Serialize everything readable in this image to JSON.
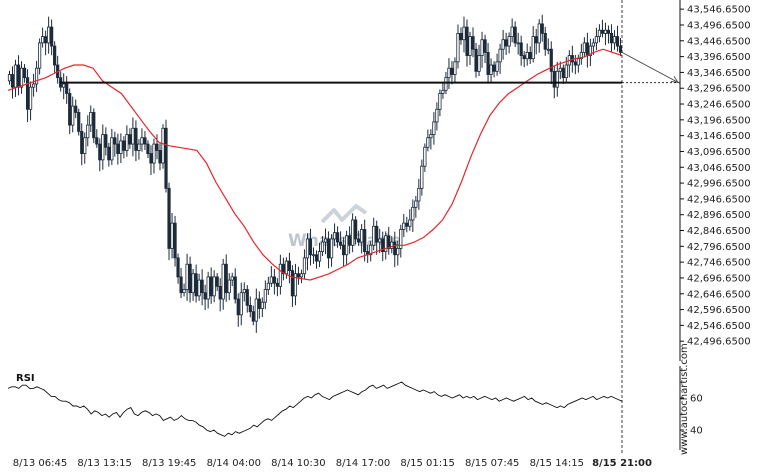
{
  "chart_data": [
    {
      "type": "candlestick",
      "title": "",
      "xlabel": "",
      "ylabel": "",
      "ylim": [
        42446.65,
        43556.65
      ],
      "grid": false,
      "y_tick_labels": [
        "43,546.6500",
        "43,496.6500",
        "43,446.6500",
        "43,396.6500",
        "43,346.6500",
        "43,296.6500",
        "43,246.6500",
        "43,196.6500",
        "43,146.6500",
        "43,096.6500",
        "43,046.6500",
        "42,996.6500",
        "42,946.6500",
        "42,896.6500",
        "42,846.6500",
        "42,796.6500",
        "42,746.6500",
        "42,696.6500",
        "42,646.6500",
        "42,596.6500",
        "42,546.6500",
        "42,496.6500"
      ],
      "y_tick_values": [
        43546.65,
        43496.65,
        43446.65,
        43396.65,
        43346.65,
        43296.65,
        43246.65,
        43196.65,
        43146.65,
        43096.65,
        43046.65,
        42996.65,
        42946.65,
        42896.65,
        42846.65,
        42796.65,
        42746.65,
        42696.65,
        42646.65,
        42596.65,
        42546.65,
        42496.65
      ],
      "x_tick_labels": [
        "8/13 06:45",
        "8/13 13:15",
        "8/13 19:45",
        "8/14 04:00",
        "8/14 10:30",
        "8/14 17:00",
        "8/15 01:15",
        "8/15 07:45",
        "8/15 14:15",
        "8/15 21:00"
      ],
      "close_path": [
        43340,
        43300,
        43370,
        43300,
        43360,
        43330,
        43230,
        43300,
        43310,
        43360,
        43440,
        43460,
        43440,
        43490,
        43430,
        43370,
        43330,
        43300,
        43310,
        43280,
        43180,
        43240,
        43220,
        43160,
        43090,
        43140,
        43180,
        43220,
        43140,
        43120,
        43070,
        43150,
        43110,
        43070,
        43140,
        43120,
        43090,
        43130,
        43100,
        43150,
        43120,
        43170,
        43100,
        43120,
        43140,
        43120,
        43090,
        43060,
        43120,
        43100,
        43060,
        43170,
        42980,
        42790,
        42870,
        42760,
        42700,
        42650,
        42660,
        42740,
        42650,
        42710,
        42640,
        42690,
        42650,
        42630,
        42700,
        42640,
        42700,
        42670,
        42630,
        42740,
        42650,
        42690,
        42700,
        42630,
        42580,
        42650,
        42660,
        42610,
        42590,
        42560,
        42630,
        42600,
        42620,
        42660,
        42680,
        42700,
        42680,
        42670,
        42740,
        42710,
        42750,
        42720,
        42640,
        42710,
        42700,
        42710,
        42760,
        42820,
        42770,
        42770,
        42750,
        42780,
        42810,
        42820,
        42760,
        42820,
        42840,
        42810,
        42800,
        42770,
        42830,
        42800,
        42880,
        42820,
        42810,
        42850,
        42780,
        42770,
        42800,
        42860,
        42810,
        42820,
        42780,
        42830,
        42790,
        42810,
        42770,
        42790,
        42850,
        42870,
        42860,
        42880,
        42920,
        42940,
        42980,
        43050,
        43110,
        43140,
        43150,
        43190,
        43230,
        43280,
        43290,
        43330,
        43360,
        43340,
        43380,
        43470,
        43450,
        43490,
        43400,
        43460,
        43420,
        43350,
        43400,
        43450,
        43410,
        43340,
        43370,
        43350,
        43380,
        43420,
        43450,
        43430,
        43460,
        43490,
        43440,
        43440,
        43400,
        43390,
        43410,
        43390,
        43460,
        43440,
        43500,
        43470,
        43420,
        43420,
        43350,
        43300,
        43350,
        43360,
        43330,
        43370,
        43400,
        43380,
        43370,
        43390,
        43410,
        43440,
        43400,
        43430,
        43440,
        43460,
        43480,
        43470,
        43480,
        43470,
        43440,
        43460,
        43430,
        43410
      ],
      "ma_path": [
        43290,
        43300,
        43310,
        43320,
        43330,
        43345,
        43360,
        43370,
        43370,
        43360,
        43320,
        43300,
        43280,
        43240,
        43200,
        43160,
        43125,
        43115,
        43110,
        43105,
        43100,
        43060,
        43000,
        42950,
        42900,
        42860,
        42810,
        42770,
        42740,
        42715,
        42700,
        42695,
        42690,
        42700,
        42710,
        42725,
        42740,
        42760,
        42770,
        42780,
        42790,
        42800,
        42800,
        42810,
        42825,
        42850,
        42880,
        42930,
        43000,
        43080,
        43150,
        43210,
        43250,
        43280,
        43300,
        43320,
        43340,
        43355,
        43370,
        43380,
        43390,
        43395,
        43410,
        43420,
        43410,
        43400
      ],
      "resistance_level": 43314.2,
      "forecast_arrow": {
        "from": 43410,
        "to": 43315
      },
      "series": []
    },
    {
      "type": "line",
      "title": "RSI",
      "xlabel": "",
      "ylabel": "",
      "ylim": [
        30,
        80
      ],
      "y_tick_labels": [
        "60",
        "40"
      ],
      "y_tick_values": [
        60,
        40
      ],
      "values": [
        66,
        67,
        67,
        66,
        68,
        68,
        66,
        66,
        67,
        66,
        65,
        63,
        61,
        61,
        59,
        58,
        58,
        57,
        55,
        55,
        54,
        55,
        53,
        50,
        52,
        51,
        49,
        50,
        48,
        50,
        51,
        48,
        51,
        53,
        54,
        50,
        49,
        51,
        52,
        51,
        49,
        50,
        49,
        46,
        47,
        48,
        46,
        47,
        49,
        47,
        46,
        46,
        45,
        43,
        42,
        40,
        39,
        40,
        38,
        37,
        36,
        38,
        37,
        39,
        38,
        39,
        40,
        41,
        43,
        42,
        44,
        46,
        47,
        46,
        48,
        50,
        52,
        53,
        55,
        54,
        56,
        58,
        60,
        61,
        60,
        62,
        63,
        61,
        60,
        59,
        61,
        62,
        63,
        64,
        65,
        64,
        63,
        62,
        64,
        65,
        67,
        68,
        66,
        67,
        68,
        66,
        67,
        68,
        69,
        70,
        68,
        67,
        66,
        65,
        64,
        65,
        64,
        63,
        64,
        62,
        61,
        62,
        61,
        60,
        61,
        62,
        60,
        61,
        60,
        61,
        59,
        60,
        61,
        60,
        59,
        60,
        58,
        59,
        60,
        59,
        58,
        59,
        60,
        61,
        59,
        60,
        58,
        57,
        56,
        57,
        56,
        55,
        54,
        55,
        54,
        56,
        57,
        58,
        59,
        60,
        59,
        60,
        61,
        59,
        60,
        61,
        60,
        61,
        60,
        59,
        58
      ],
      "series": [
        {
          "name": "RSI",
          "values": []
        }
      ]
    }
  ],
  "watermark": "WhatsTrade",
  "credit": "www.autochartist.com"
}
